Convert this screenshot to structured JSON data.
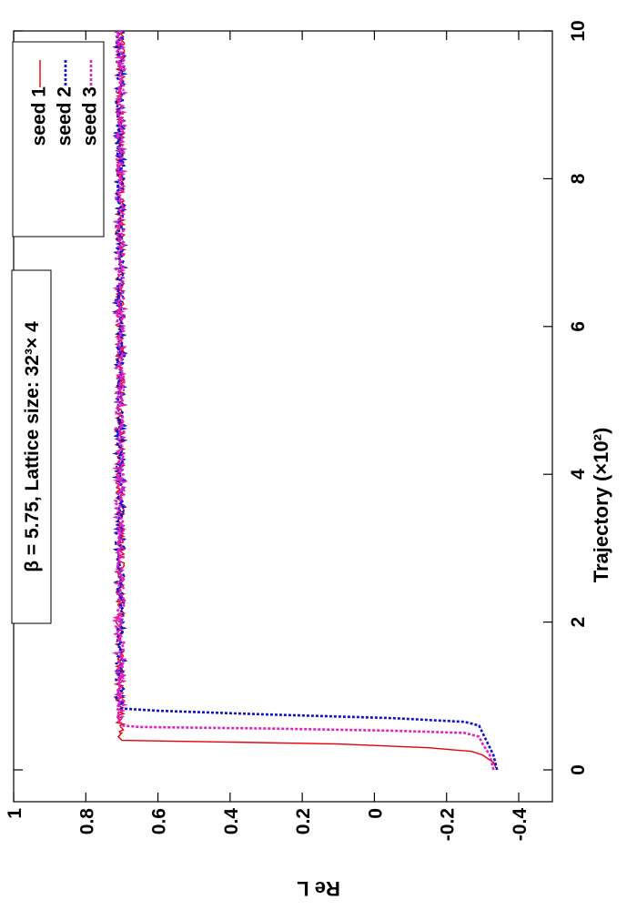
{
  "chart_data": {
    "type": "line",
    "orientation": "rotated-90-clockwise",
    "xlabel": "Trajectory (×10²)",
    "ylabel": "Re L",
    "xlim": [
      0,
      10
    ],
    "ylim": [
      -0.4,
      1
    ],
    "xticks": [
      "0",
      "2",
      "4",
      "6",
      "8",
      "10"
    ],
    "yticks": [
      "-0.4",
      "-0.2",
      "0",
      "0.2",
      "0.4",
      "0.6",
      "0.8",
      "1"
    ],
    "annotation": "β = 5.75, Lattice size: 32³× 4",
    "legend_position": "top-right",
    "grid": false,
    "series": [
      {
        "name": "seed 1",
        "color": "#e8000b",
        "dash": "solid",
        "points": [
          [
            0,
            -0.34
          ],
          [
            0.1,
            -0.33
          ],
          [
            0.2,
            -0.3
          ],
          [
            0.25,
            -0.27
          ],
          [
            0.3,
            -0.15
          ],
          [
            0.35,
            0.1
          ],
          [
            0.38,
            0.45
          ],
          [
            0.4,
            0.7
          ],
          [
            0.45,
            0.71
          ],
          [
            0.5,
            0.7
          ],
          [
            10,
            0.7
          ]
        ]
      },
      {
        "name": "seed 2",
        "color": "#1010d0",
        "dash": "dotted",
        "points": [
          [
            0,
            -0.34
          ],
          [
            0.2,
            -0.33
          ],
          [
            0.4,
            -0.31
          ],
          [
            0.5,
            -0.3
          ],
          [
            0.6,
            -0.29
          ],
          [
            0.65,
            -0.25
          ],
          [
            0.7,
            -0.05
          ],
          [
            0.75,
            0.3
          ],
          [
            0.8,
            0.6
          ],
          [
            0.83,
            0.7
          ],
          [
            0.9,
            0.71
          ],
          [
            10,
            0.7
          ]
        ]
      },
      {
        "name": "seed 3",
        "color": "#e020c0",
        "dash": "dotted",
        "points": [
          [
            0,
            -0.33
          ],
          [
            0.2,
            -0.32
          ],
          [
            0.35,
            -0.3
          ],
          [
            0.45,
            -0.29
          ],
          [
            0.5,
            -0.25
          ],
          [
            0.53,
            -0.05
          ],
          [
            0.56,
            0.3
          ],
          [
            0.58,
            0.65
          ],
          [
            0.6,
            0.7
          ],
          [
            0.7,
            0.71
          ],
          [
            10,
            0.7
          ]
        ]
      }
    ],
    "plateau": {
      "from": 0.9,
      "to": 10,
      "mean": 0.705,
      "amplitude": 0.012
    }
  }
}
